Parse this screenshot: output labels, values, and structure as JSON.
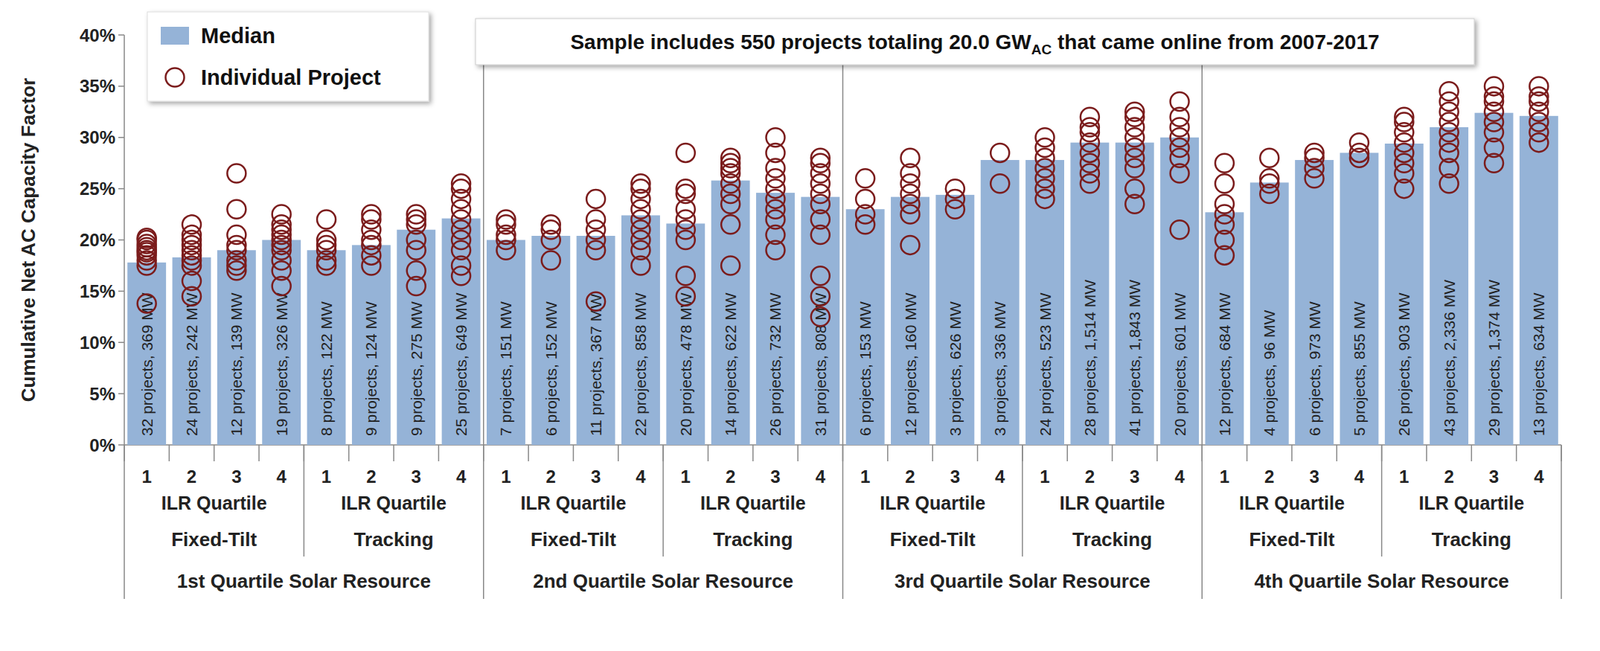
{
  "chart_data": {
    "type": "bar",
    "subtitle": {
      "before": "Sample includes 550 projects totaling 20.0 GW",
      "sub": "AC",
      "after": " that came online from 2007-2017"
    },
    "y_label": "Cumulative Net AC Capacity Factor",
    "ylim": [
      0,
      40
    ],
    "yticks": [
      {
        "value": 0,
        "label": "0%"
      },
      {
        "value": 5,
        "label": "5%"
      },
      {
        "value": 10,
        "label": "10%"
      },
      {
        "value": 15,
        "label": "15%"
      },
      {
        "value": 20,
        "label": "20%"
      },
      {
        "value": 25,
        "label": "25%"
      },
      {
        "value": 30,
        "label": "30%"
      },
      {
        "value": 35,
        "label": "35%"
      },
      {
        "value": 40,
        "label": "40%"
      }
    ],
    "grid": false,
    "legend": "upper left",
    "categories": [
      "1",
      "2",
      "3",
      "4",
      "1",
      "2",
      "3",
      "4",
      "1",
      "2",
      "3",
      "4",
      "1",
      "2",
      "3",
      "4",
      "1",
      "2",
      "3",
      "4",
      "1",
      "2",
      "3",
      "4",
      "1",
      "2",
      "3",
      "4",
      "1",
      "2",
      "3",
      "4"
    ],
    "category_groups": [
      {
        "label": "1st Quartile Solar Resource",
        "groups": [
          {
            "label": "Fixed-Tilt",
            "sublabel": "ILR Quartile"
          },
          {
            "label": "Tracking",
            "sublabel": "ILR Quartile"
          }
        ]
      },
      {
        "label": "2nd Quartile Solar Resource",
        "groups": [
          {
            "label": "Fixed-Tilt",
            "sublabel": "ILR Quartile"
          },
          {
            "label": "Tracking",
            "sublabel": "ILR Quartile"
          }
        ]
      },
      {
        "label": "3rd Quartile Solar Resource",
        "groups": [
          {
            "label": "Fixed-Tilt",
            "sublabel": "ILR Quartile"
          },
          {
            "label": "Tracking",
            "sublabel": "ILR Quartile"
          }
        ]
      },
      {
        "label": "4th Quartile Solar Resource",
        "groups": [
          {
            "label": "Fixed-Tilt",
            "sublabel": "ILR Quartile"
          },
          {
            "label": "Tracking",
            "sublabel": "ILR Quartile"
          }
        ]
      }
    ],
    "annotations": [
      "32 projects, 369 MW",
      "24 projects, 242 MW",
      "12 projects, 139 MW",
      "19 projects, 326 MW",
      "8 projects, 122 MW",
      "9 projects, 124 MW",
      "9 projects, 275 MW",
      "25 projects, 649 MW",
      "7 projects, 151 MW",
      "6 projects, 152 MW",
      "11 projects, 367 MW",
      "22 projects, 858 MW",
      "20 projects, 478 MW",
      "14 projects, 622 MW",
      "26 projects, 732 MW",
      "31 projects, 808 MW",
      "6 projects, 153 MW",
      "12 projects, 160 MW",
      "3 projects, 626 MW",
      "3 projects, 336 MW",
      "24 projects, 523 MW",
      "28 projects, 1,514 MW",
      "41 projects, 1,843 MW",
      "20 projects, 601 MW",
      "12 projects, 684 MW",
      "4 projects, 96 MW",
      "6 projects, 973 MW",
      "5 projects, 855 MW",
      "26 projects, 903 MW",
      "43 projects, 2,336 MW",
      "29 projects, 1,374 MW",
      "13 projects, 634 MW"
    ],
    "series": [
      {
        "name": "Median",
        "type": "bar",
        "color": "#95b3d7",
        "values": [
          17.8,
          18.3,
          19.0,
          20.0,
          19.0,
          19.5,
          21.0,
          22.1,
          20.0,
          20.4,
          20.4,
          22.4,
          21.6,
          25.8,
          24.6,
          24.2,
          23.0,
          24.2,
          24.4,
          27.8,
          27.8,
          29.5,
          29.5,
          30.0,
          22.7,
          25.6,
          27.8,
          28.5,
          29.4,
          31.0,
          32.4,
          32.1
        ]
      },
      {
        "name": "Individual Project",
        "type": "scatter",
        "marker": "circle",
        "color": "#7b1c1c",
        "values": [
          [
            13.8,
            17.5,
            18,
            18.5,
            18.8,
            19,
            19.3,
            19.6,
            20,
            20.2
          ],
          [
            14.5,
            16,
            17.5,
            18,
            18.5,
            19,
            19.5,
            20,
            20.5,
            21.5
          ],
          [
            17,
            17.5,
            18,
            19,
            19.5,
            20.5,
            23,
            26.5
          ],
          [
            15.5,
            17,
            18,
            19,
            19.5,
            20,
            20.5,
            21,
            21.5,
            22.5
          ],
          [
            17.5,
            18,
            19,
            19.5,
            20,
            22
          ],
          [
            17.5,
            18.5,
            19.5,
            20,
            21,
            22,
            22.5
          ],
          [
            15.5,
            17,
            19,
            20,
            21.5,
            22,
            22.5
          ],
          [
            16.5,
            17.5,
            19,
            20,
            21,
            22,
            23,
            24,
            25,
            25.5
          ],
          [
            19,
            20,
            20.5,
            21.5,
            22
          ],
          [
            18,
            20,
            21,
            21.5
          ],
          [
            14,
            19,
            20,
            21,
            22,
            24
          ],
          [
            17.5,
            19,
            20,
            21,
            22,
            23,
            24,
            25,
            25.5
          ],
          [
            14.5,
            16.5,
            20,
            21,
            22,
            23,
            24.5,
            25,
            28.5
          ],
          [
            17.5,
            21.5,
            23.5,
            24.5,
            25.5,
            26.5,
            27,
            27.5,
            28
          ],
          [
            19,
            20.5,
            22,
            23,
            24,
            25,
            26,
            27,
            28.5,
            30
          ],
          [
            12.5,
            14.5,
            16.5,
            20.5,
            22,
            23.5,
            24.5,
            25.5,
            26.5,
            27.5,
            28
          ],
          [
            21.5,
            22.5,
            24,
            26
          ],
          [
            19.5,
            22.5,
            23.5,
            24.5,
            25.5,
            26.5,
            28
          ],
          [
            23,
            24,
            25
          ],
          [
            25.5,
            28.5
          ],
          [
            24,
            25,
            26,
            27,
            28,
            29,
            30
          ],
          [
            25.5,
            26.5,
            27.5,
            28.5,
            29.5,
            30.5,
            31,
            32
          ],
          [
            23.5,
            25,
            27,
            28,
            29,
            30,
            31,
            32,
            32.5
          ],
          [
            21,
            26.5,
            28,
            29,
            30,
            31,
            32,
            33.5
          ],
          [
            18.5,
            20,
            21.5,
            22.5,
            23.5,
            25.5,
            27.5
          ],
          [
            24.5,
            25.5,
            26,
            28
          ],
          [
            26,
            27,
            28,
            28.5
          ],
          [
            28,
            28.5,
            29.5
          ],
          [
            25,
            26.5,
            27.5,
            28.5,
            29.5,
            30.5,
            31.5,
            32
          ],
          [
            25.5,
            27,
            28.5,
            29.5,
            30.5,
            31.5,
            32.5,
            33.5,
            34.5
          ],
          [
            27.5,
            29,
            30.5,
            31.5,
            32.5,
            33.5,
            34,
            35
          ],
          [
            29.5,
            30.5,
            31.5,
            32.5,
            33.5,
            34,
            35
          ]
        ]
      }
    ]
  }
}
